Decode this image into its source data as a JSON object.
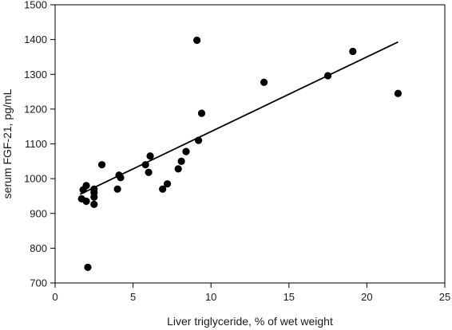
{
  "chart_data": {
    "type": "scatter",
    "title": "",
    "xlabel": "Liver triglyceride, % of wet weight",
    "ylabel": "serum FGF-21, pg/mL",
    "xlim": [
      0,
      25
    ],
    "ylim": [
      700,
      1500
    ],
    "x_ticks": [
      0,
      5,
      10,
      15,
      20,
      25
    ],
    "y_ticks": [
      700,
      800,
      900,
      1000,
      1100,
      1200,
      1300,
      1400,
      1500
    ],
    "grid": false,
    "legend": "none",
    "series": [
      {
        "points": [
          {
            "x": 1.7,
            "y": 942
          },
          {
            "x": 1.8,
            "y": 968
          },
          {
            "x": 2.0,
            "y": 935
          },
          {
            "x": 2.0,
            "y": 980
          },
          {
            "x": 2.1,
            "y": 745
          },
          {
            "x": 2.5,
            "y": 970
          },
          {
            "x": 2.5,
            "y": 960
          },
          {
            "x": 2.5,
            "y": 947
          },
          {
            "x": 2.5,
            "y": 926
          },
          {
            "x": 3.0,
            "y": 1040
          },
          {
            "x": 4.0,
            "y": 970
          },
          {
            "x": 4.1,
            "y": 1010
          },
          {
            "x": 4.2,
            "y": 1003
          },
          {
            "x": 5.8,
            "y": 1040
          },
          {
            "x": 6.0,
            "y": 1018
          },
          {
            "x": 6.1,
            "y": 1065
          },
          {
            "x": 6.9,
            "y": 970
          },
          {
            "x": 7.2,
            "y": 985
          },
          {
            "x": 7.9,
            "y": 1028
          },
          {
            "x": 8.1,
            "y": 1050
          },
          {
            "x": 8.4,
            "y": 1078
          },
          {
            "x": 9.1,
            "y": 1398
          },
          {
            "x": 9.2,
            "y": 1110
          },
          {
            "x": 9.4,
            "y": 1188
          },
          {
            "x": 13.4,
            "y": 1277
          },
          {
            "x": 17.5,
            "y": 1296
          },
          {
            "x": 19.1,
            "y": 1366
          },
          {
            "x": 22.0,
            "y": 1245
          }
        ]
      }
    ],
    "trendline": {
      "type": "linear",
      "x": [
        1.6,
        22.0
      ],
      "y": [
        955,
        1393
      ]
    },
    "colors": {
      "marker": "#000000",
      "line": "#000000",
      "axis": "#000000"
    }
  }
}
